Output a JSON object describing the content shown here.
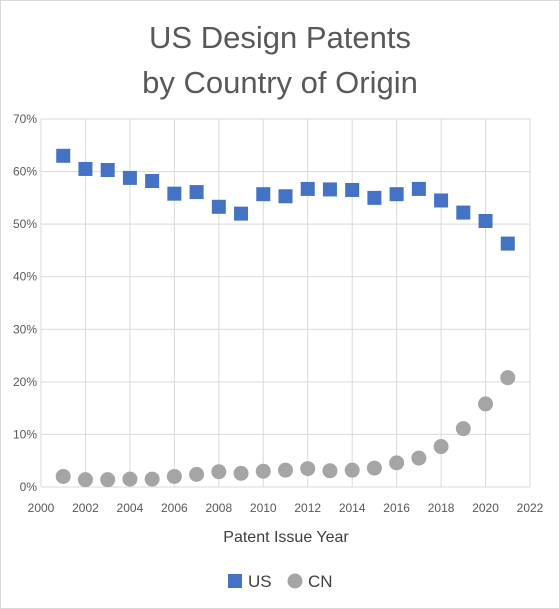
{
  "chart_data": {
    "type": "scatter",
    "title": "US Design Patents by Country of Origin",
    "title_lines": [
      "US Design Patents",
      "by Country of Origin"
    ],
    "xlabel": "Patent Issue Year",
    "ylabel": "",
    "xlim": [
      2000,
      2022
    ],
    "ylim": [
      0,
      0.7
    ],
    "x_ticks": [
      2000,
      2002,
      2004,
      2006,
      2008,
      2010,
      2012,
      2014,
      2016,
      2018,
      2020,
      2022
    ],
    "x_tick_labels": [
      "2000",
      "2002",
      "2004",
      "2006",
      "2008",
      "2010",
      "2012",
      "2014",
      "2016",
      "2018",
      "2020",
      "2022"
    ],
    "y_ticks": [
      0,
      0.1,
      0.2,
      0.3,
      0.4,
      0.5,
      0.6,
      0.7
    ],
    "y_tick_labels": [
      "0%",
      "10%",
      "20%",
      "30%",
      "40%",
      "50%",
      "60%",
      "70%"
    ],
    "grid": true,
    "legend_position": "bottom",
    "x": [
      2001,
      2002,
      2003,
      2004,
      2005,
      2006,
      2007,
      2008,
      2009,
      2010,
      2011,
      2012,
      2013,
      2014,
      2015,
      2016,
      2017,
      2018,
      2019,
      2020,
      2021
    ],
    "series": [
      {
        "name": "US",
        "marker": "square",
        "color": "#4472C4",
        "values": [
          0.63,
          0.605,
          0.603,
          0.588,
          0.582,
          0.558,
          0.561,
          0.533,
          0.52,
          0.557,
          0.553,
          0.567,
          0.566,
          0.565,
          0.55,
          0.557,
          0.567,
          0.545,
          0.522,
          0.506,
          0.463
        ]
      },
      {
        "name": "CN",
        "marker": "circle",
        "color": "#A5A5A5",
        "values": [
          0.02,
          0.014,
          0.014,
          0.015,
          0.015,
          0.02,
          0.024,
          0.029,
          0.026,
          0.03,
          0.032,
          0.035,
          0.031,
          0.032,
          0.036,
          0.046,
          0.055,
          0.077,
          0.111,
          0.158,
          0.208
        ]
      }
    ]
  },
  "colors": {
    "gridline": "#d9d9d9",
    "axis_text": "#595959",
    "title": "#595959",
    "border": "#d9d9d9"
  }
}
